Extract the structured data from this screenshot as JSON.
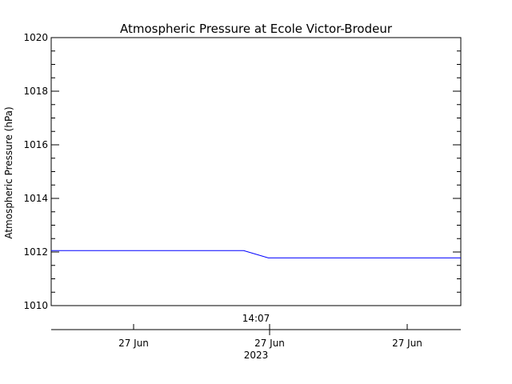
{
  "chart_data": {
    "type": "line",
    "title": "Atmospheric Pressure at Ecole Victor-Brodeur",
    "ylabel": "Atmospheric Pressure (hPa)",
    "xlabel": "",
    "ylim": [
      1010,
      1020
    ],
    "y_major_ticks": [
      1010,
      1012,
      1014,
      1016,
      1018,
      1020
    ],
    "y_minor_step": 0.5,
    "grid": false,
    "colors": {
      "series": "#0000ff",
      "axes": "#000000",
      "background": "#ffffff"
    },
    "time_axis": {
      "hour_label": "14:07",
      "date_tick_labels": [
        "27 Jun",
        "27 Jun",
        "27 Jun"
      ],
      "year_label": "2023"
    },
    "series": [
      {
        "x": [
          0.0,
          0.47,
          0.53,
          1.0
        ],
        "values": [
          1012.05,
          1012.05,
          1011.78,
          1011.78
        ]
      }
    ]
  }
}
